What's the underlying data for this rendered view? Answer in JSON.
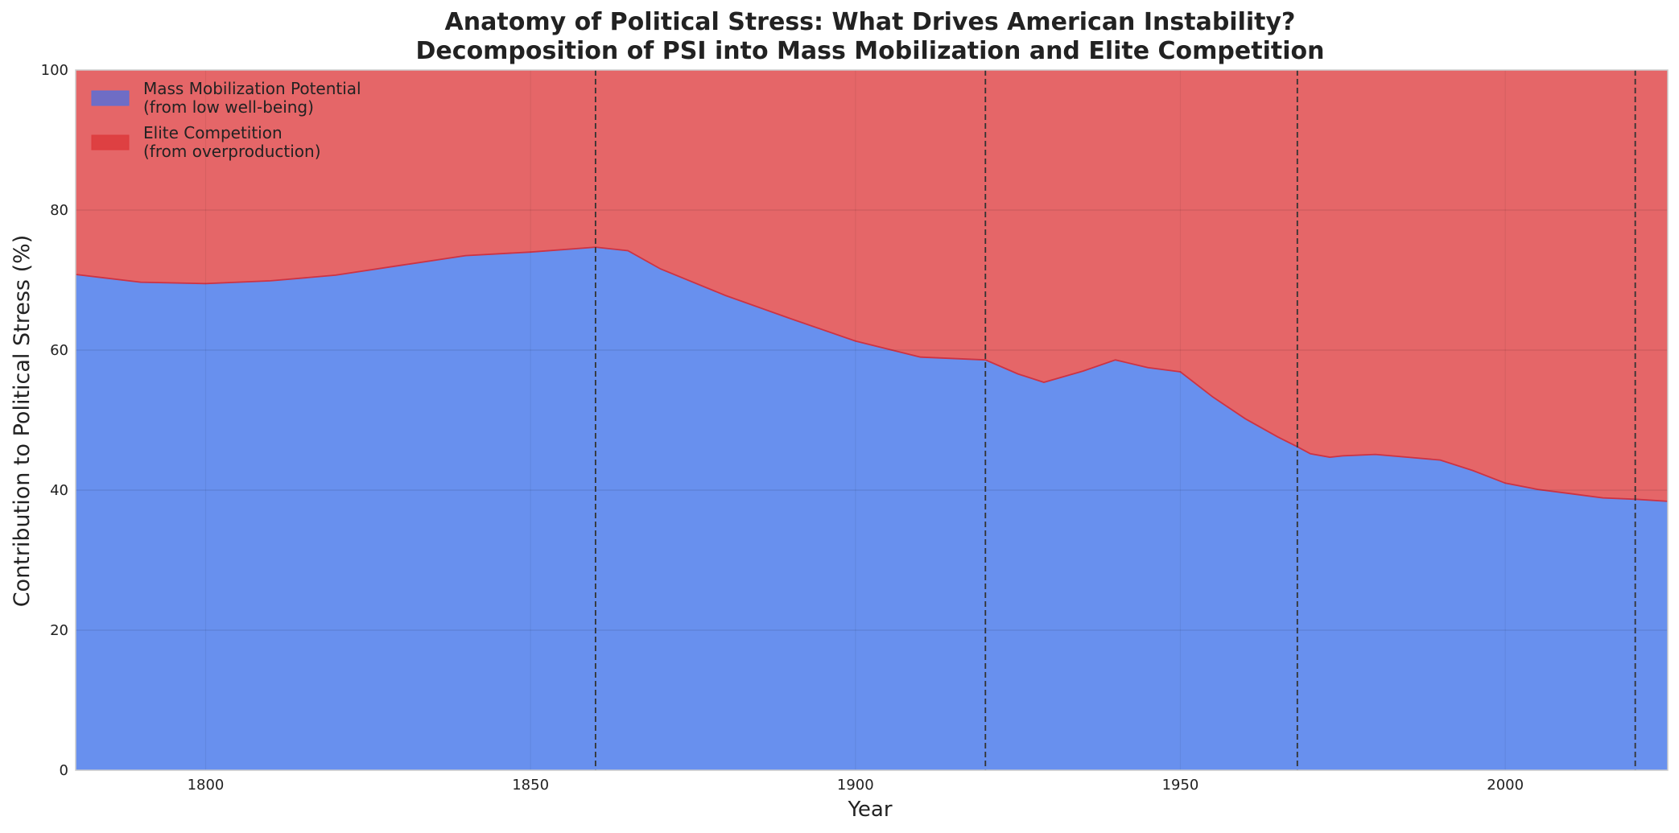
{
  "chart_data": {
    "type": "area",
    "stacked": true,
    "normalized_percent": true,
    "title_line1": "Anatomy of Political Stress: What Drives American Instability?",
    "title_line2": "Decomposition of PSI into Mass Mobilization and Elite Competition",
    "xlabel": "Year",
    "ylabel": "Contribution to Political Stress (%)",
    "xlim": [
      1780,
      2025
    ],
    "ylim": [
      0,
      100
    ],
    "xticks": [
      1800,
      1850,
      1900,
      1950,
      2000
    ],
    "yticks": [
      0,
      20,
      40,
      60,
      80,
      100
    ],
    "grid": true,
    "legend_position": "top-left",
    "x": [
      1780,
      1790,
      1800,
      1810,
      1820,
      1830,
      1840,
      1850,
      1860,
      1865,
      1870,
      1880,
      1890,
      1900,
      1910,
      1920,
      1925,
      1929,
      1935,
      1940,
      1945,
      1950,
      1955,
      1960,
      1965,
      1968,
      1970,
      1973,
      1975,
      1980,
      1985,
      1990,
      1995,
      2000,
      2005,
      2010,
      2015,
      2020,
      2025
    ],
    "series": [
      {
        "name": "Mass Mobilization Potential\n(from low well-being)",
        "color": "#6890ee",
        "legend_color": "#5b6fd6",
        "values": [
          70.8,
          69.7,
          69.5,
          69.9,
          70.7,
          72.1,
          73.5,
          74.0,
          74.7,
          74.2,
          71.6,
          67.8,
          64.5,
          61.3,
          59.0,
          58.6,
          56.6,
          55.4,
          57.0,
          58.6,
          57.5,
          56.9,
          53.3,
          50.2,
          47.6,
          46.2,
          45.2,
          44.7,
          44.9,
          45.1,
          44.7,
          44.3,
          42.8,
          41.0,
          40.1,
          39.5,
          38.9,
          38.7,
          38.4
        ]
      },
      {
        "name": "Elite Competition\n(from overproduction)",
        "color": "#e56668",
        "legend_color": "#dd3a3c",
        "values": [
          29.2,
          30.3,
          30.5,
          30.1,
          29.3,
          27.9,
          26.5,
          26.0,
          25.3,
          25.8,
          28.4,
          32.2,
          35.5,
          38.7,
          41.0,
          41.4,
          43.4,
          44.6,
          43.0,
          41.4,
          42.5,
          43.1,
          46.7,
          49.8,
          52.4,
          53.8,
          54.8,
          55.3,
          55.1,
          54.9,
          55.3,
          55.7,
          57.2,
          59.0,
          59.9,
          60.5,
          61.1,
          61.3,
          61.6
        ]
      }
    ],
    "vlines": [
      1860,
      1920,
      1968,
      2020
    ],
    "boundary_color": "#cc3344",
    "vline_color": "#333333"
  }
}
